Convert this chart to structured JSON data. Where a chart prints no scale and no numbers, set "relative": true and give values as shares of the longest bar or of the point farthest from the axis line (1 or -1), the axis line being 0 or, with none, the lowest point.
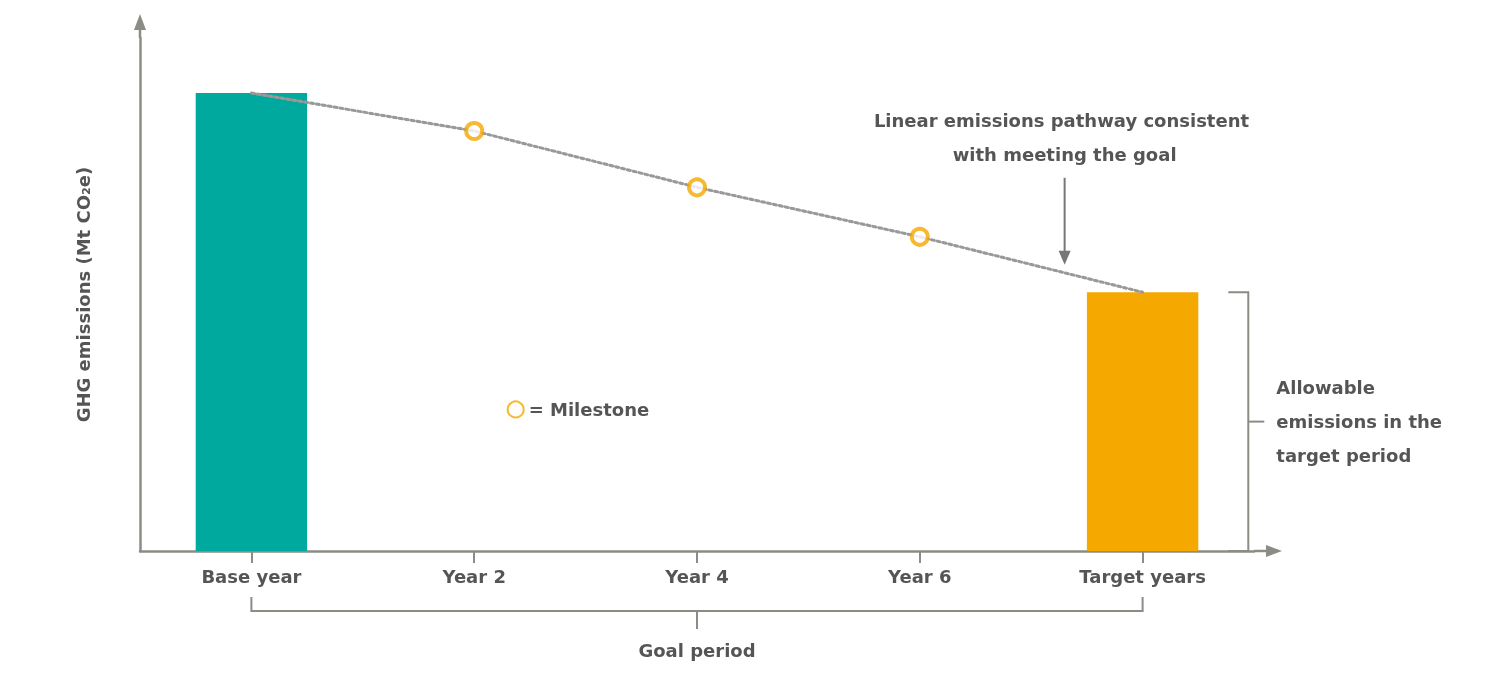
{
  "chart_data": {
    "type": "bar",
    "relative": true,
    "ylabel": "GHG emissions (Mt CO₂e)",
    "categories": [
      "Base year",
      "Year 2",
      "Year 4",
      "Year 6",
      "Target years"
    ],
    "series": [
      {
        "colors": [
          "#00a99d",
          null,
          null,
          null,
          "#f5a800"
        ],
        "values": [
          1,
          null,
          null,
          null,
          0.565
        ]
      },
      {
        "type": "line",
        "color": "#999999",
        "line_style": "dotted",
        "marker": "none",
        "values": [
          1,
          0.917,
          0.794,
          0.686,
          0.565
        ]
      },
      {
        "type": "scatter",
        "name": "= Milestone",
        "color": "#f5a800",
        "marker": "circle",
        "values": [
          null,
          0.917,
          0.794,
          0.686,
          null
        ]
      }
    ],
    "annotations": [
      "Linear emissions pathway consistent with meeting the goal",
      "Allowable emissions in the target period",
      "Goal period"
    ],
    "legend": "center",
    "grid": false,
    "tick_labels": "x"
  }
}
